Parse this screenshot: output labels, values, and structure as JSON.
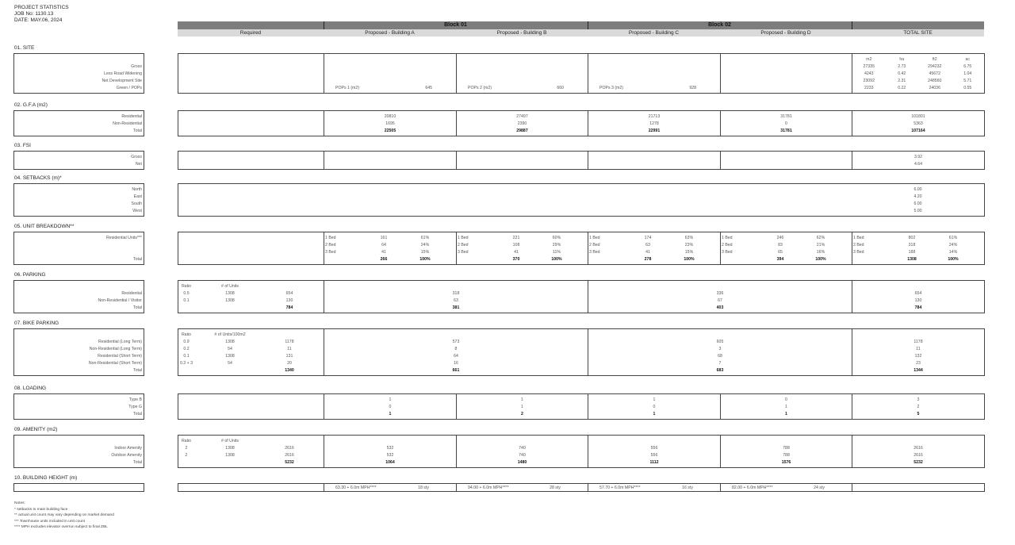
{
  "header": {
    "title": "PROJECT STATISTICS",
    "job": "JOB No: 1130.13",
    "date": "DATE: MAY.06, 2024"
  },
  "blocks": [
    "Block 01",
    "Block 02"
  ],
  "columns": [
    "Required",
    "Proposed - Building A",
    "Proposed - Building B",
    "Proposed - Building C",
    "Proposed - Building D",
    "TOTAL SITE"
  ],
  "colors": {
    "header_dark": "#7d7d7d",
    "header_light": "#dadada",
    "border": "#444444"
  },
  "sections": [
    {
      "title": "01. SITE",
      "labels": [
        "",
        "Gross",
        "Less Road Widening",
        "Net Development Site",
        "Green / POPs"
      ],
      "cells": [
        {
          "rows": []
        },
        {
          "rows": [
            [
              ""
            ],
            [
              ""
            ],
            [
              ""
            ],
            [
              ""
            ],
            [
              "POPs 1 (m2)",
              "645"
            ]
          ]
        },
        {
          "rows": [
            [
              ""
            ],
            [
              ""
            ],
            [
              ""
            ],
            [
              ""
            ],
            [
              "POPs 2 (m2)",
              "660"
            ]
          ]
        },
        {
          "rows": [
            [
              ""
            ],
            [
              ""
            ],
            [
              ""
            ],
            [
              ""
            ],
            [
              "POPs 3 (m2)",
              "928"
            ]
          ]
        },
        {
          "rows": []
        },
        {
          "rows": [
            [
              "m2",
              "ha",
              "ft2",
              "ac"
            ],
            [
              "27335",
              "2.73",
              "294232",
              "6.75"
            ],
            [
              "4243",
              "0.42",
              "45672",
              "1.04"
            ],
            [
              "23092",
              "2.31",
              "248560",
              "5.71"
            ],
            [
              "2233",
              "0.22",
              "24036",
              "0.55"
            ]
          ]
        }
      ]
    },
    {
      "title": "02. G.F.A (m2)",
      "labels": [
        "Residential",
        "Non-Residential",
        "Total"
      ],
      "cells": [
        {
          "rows": []
        },
        {
          "rows": [
            [
              "20810"
            ],
            [
              "1695"
            ],
            [
              "22505"
            ]
          ]
        },
        {
          "rows": [
            [
              "27497"
            ],
            [
              "2390"
            ],
            [
              "29887"
            ]
          ]
        },
        {
          "rows": [
            [
              "21713"
            ],
            [
              "1278"
            ],
            [
              "22991"
            ]
          ]
        },
        {
          "rows": [
            [
              "31781"
            ],
            [
              "0"
            ],
            [
              "31781"
            ]
          ]
        },
        {
          "rows": [
            [
              "101801"
            ],
            [
              "5363"
            ],
            [
              "107164"
            ]
          ]
        }
      ]
    },
    {
      "title": "03. FSI",
      "labels": [
        "Gross",
        "Net"
      ],
      "cells": [
        {
          "rows": []
        },
        {
          "rows": []
        },
        {
          "rows": []
        },
        {
          "rows": []
        },
        {
          "rows": []
        },
        {
          "rows": [
            [
              "3.92"
            ],
            [
              "4.64"
            ]
          ]
        }
      ]
    },
    {
      "title": "04. SETBACKS (m)*",
      "labels": [
        "North",
        "East",
        "South",
        "West"
      ],
      "cells": [
        {
          "rows": []
        },
        {
          "rows": [
            [
              "6.00"
            ],
            [
              "4.20"
            ],
            [
              "6.00"
            ],
            [
              "5.00"
            ]
          ]
        }
      ]
    },
    {
      "title": "05. UNIT BREAKDOWN**",
      "labels": [
        "Residential Units***",
        "",
        "",
        "Total"
      ],
      "cells": [
        {
          "rows": []
        },
        {
          "rows": [
            [
              "1 Bed",
              "161",
              "",
              "61%"
            ],
            [
              "2 Bed",
              "64",
              "",
              "24%"
            ],
            [
              "3 Bed",
              "41",
              "",
              "15%"
            ],
            [
              "",
              "266",
              "",
              "100%"
            ]
          ]
        },
        {
          "rows": [
            [
              "1 Bed",
              "221",
              "",
              "60%"
            ],
            [
              "2 Bed",
              "108",
              "",
              "29%"
            ],
            [
              "3 Bed",
              "41",
              "",
              "11%"
            ],
            [
              "",
              "370",
              "",
              "100%"
            ]
          ]
        },
        {
          "rows": [
            [
              "1 Bed",
              "174",
              "",
              "63%"
            ],
            [
              "2 Bed",
              "63",
              "",
              "23%"
            ],
            [
              "3 Bed",
              "41",
              "",
              "15%"
            ],
            [
              "",
              "278",
              "",
              "100%"
            ]
          ]
        },
        {
          "rows": [
            [
              "1 Bed",
              "246",
              "",
              "62%"
            ],
            [
              "2 Bed",
              "83",
              "",
              "21%"
            ],
            [
              "3 Bed",
              "65",
              "",
              "16%"
            ],
            [
              "",
              "394",
              "",
              "100%"
            ]
          ]
        },
        {
          "rows": [
            [
              "1 Bed",
              "802",
              "",
              "61%"
            ],
            [
              "2 Bed",
              "318",
              "",
              "24%"
            ],
            [
              "3 Bed",
              "188",
              "",
              "14%"
            ],
            [
              "",
              "1308",
              "",
              "100%"
            ]
          ]
        }
      ]
    },
    {
      "title": "06. PARKING",
      "labels": [
        "",
        "Residential",
        "Non-Residential / Visitor",
        "Total"
      ],
      "cells": [
        {
          "rows": [
            [
              "Ratio",
              "# of Units",
              ""
            ],
            [
              "0.5",
              "1308",
              "654"
            ],
            [
              "0.1",
              "1308",
              "130"
            ],
            [
              "",
              "",
              "784"
            ]
          ]
        },
        {
          "rows": [
            [
              ""
            ],
            [
              "318"
            ],
            [
              "63"
            ],
            [
              "381"
            ]
          ]
        },
        {
          "rows": [
            [
              ""
            ],
            [
              "336"
            ],
            [
              "67"
            ],
            [
              "403"
            ]
          ]
        },
        {
          "rows": [
            [
              ""
            ],
            [
              "654"
            ],
            [
              "130"
            ],
            [
              "784"
            ]
          ]
        }
      ]
    },
    {
      "title": "07. BIKE PARKING",
      "labels": [
        "",
        "Residential  (Long Term)",
        "Non-Residential (Long Term)",
        "Residential (Short Term)",
        "Non-Residential (Short Term)",
        "Total"
      ],
      "cells": [
        {
          "rows": [
            [
              "Ratio",
              "# of Units/100m2",
              ""
            ],
            [
              "0.9",
              "1308",
              "1178"
            ],
            [
              "0.2",
              "54",
              "11"
            ],
            [
              "0.1",
              "1308",
              "131"
            ],
            [
              "0.3 + 3",
              "54",
              "20"
            ],
            [
              "",
              "",
              "1340"
            ]
          ]
        },
        {
          "rows": [
            [
              ""
            ],
            [
              "573"
            ],
            [
              "8"
            ],
            [
              "64"
            ],
            [
              "16"
            ],
            [
              "661"
            ]
          ]
        },
        {
          "rows": [
            [
              ""
            ],
            [
              "605"
            ],
            [
              "3"
            ],
            [
              "68"
            ],
            [
              "7"
            ],
            [
              "683"
            ]
          ]
        },
        {
          "rows": [
            [
              ""
            ],
            [
              "1178"
            ],
            [
              "11"
            ],
            [
              "132"
            ],
            [
              "23"
            ],
            [
              "1344"
            ]
          ]
        }
      ]
    },
    {
      "title": "08. LOADING",
      "labels": [
        "Type B",
        "Type G",
        "Total"
      ],
      "cells": [
        {
          "rows": []
        },
        {
          "rows": [
            [
              "1"
            ],
            [
              "0"
            ],
            [
              "1"
            ]
          ]
        },
        {
          "rows": [
            [
              "1"
            ],
            [
              "1"
            ],
            [
              "2"
            ]
          ]
        },
        {
          "rows": [
            [
              "1"
            ],
            [
              "0"
            ],
            [
              "1"
            ]
          ]
        },
        {
          "rows": [
            [
              "0"
            ],
            [
              "1"
            ],
            [
              "1"
            ]
          ]
        },
        {
          "rows": [
            [
              "3"
            ],
            [
              "2"
            ],
            [
              "5"
            ]
          ]
        }
      ]
    },
    {
      "title": "09. AMENITY (m2)",
      "labels": [
        "",
        "Indoor Amenity",
        "Outdoor Amenity",
        "Total"
      ],
      "cells": [
        {
          "rows": [
            [
              "Ratio",
              "# of Units",
              ""
            ],
            [
              "2",
              "1308",
              "2616"
            ],
            [
              "2",
              "1308",
              "2616"
            ],
            [
              "",
              "",
              "5232"
            ]
          ]
        },
        {
          "rows": [
            [
              ""
            ],
            [
              "532"
            ],
            [
              "532"
            ],
            [
              "1064"
            ]
          ]
        },
        {
          "rows": [
            [
              ""
            ],
            [
              "740"
            ],
            [
              "740"
            ],
            [
              "1480"
            ]
          ]
        },
        {
          "rows": [
            [
              ""
            ],
            [
              "556"
            ],
            [
              "556"
            ],
            [
              "1112"
            ]
          ]
        },
        {
          "rows": [
            [
              ""
            ],
            [
              "788"
            ],
            [
              "788"
            ],
            [
              "1576"
            ]
          ]
        },
        {
          "rows": [
            [
              ""
            ],
            [
              "2616"
            ],
            [
              "2616"
            ],
            [
              "5232"
            ]
          ]
        }
      ]
    },
    {
      "title": "10. BUILDING HEIGHT (m)",
      "labels": [
        ""
      ],
      "cells": [
        {
          "rows": []
        },
        {
          "rows": [
            [
              "63.30 + 6.0m MPH****",
              "18 sty"
            ]
          ]
        },
        {
          "rows": [
            [
              "94.00 + 6.0m MPH****",
              "28 sty"
            ]
          ]
        },
        {
          "rows": [
            [
              "57.70 + 6.0m MPH****",
              "16 sty"
            ]
          ]
        },
        {
          "rows": [
            [
              "82.00 + 6.0m MPH****",
              "24 sty"
            ]
          ]
        },
        {
          "rows": []
        }
      ]
    }
  ],
  "notes": {
    "title": "Notes:",
    "items": [
      "* setbacks to main building face",
      "** actual unit count may vary depending on market demand",
      "*** Townhouse units included in unit count",
      "**** MPH excludes elevator overrun subject to final ZBL"
    ]
  }
}
